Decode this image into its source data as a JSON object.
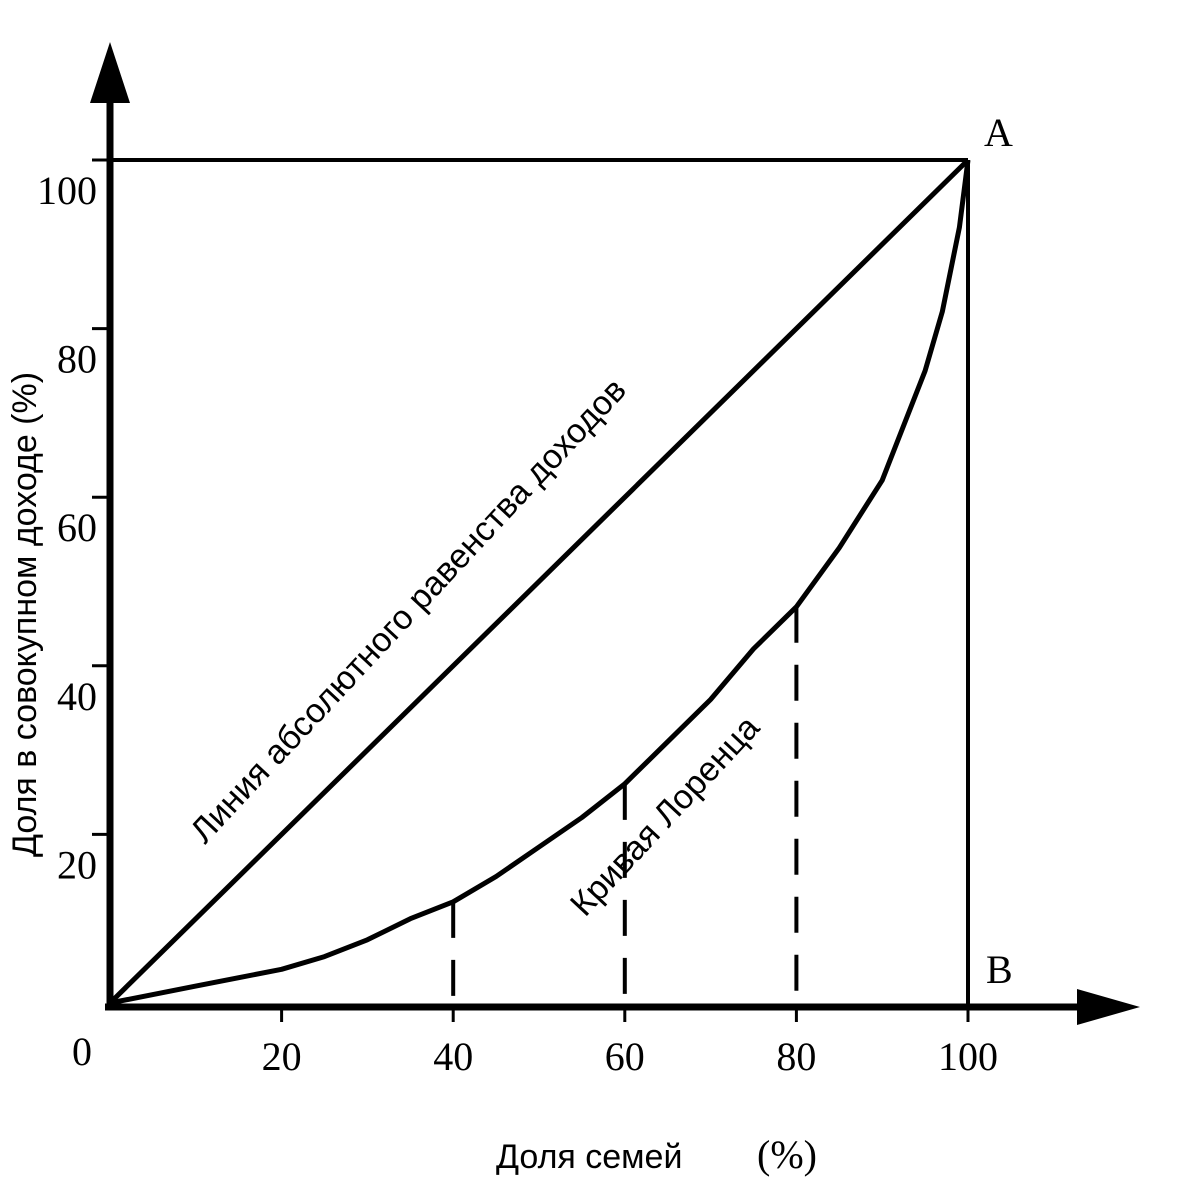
{
  "chart_data": {
    "type": "line",
    "xlabel": "Доля семей",
    "xlabel_unit": "(%)",
    "ylabel": "Доля в совокупном доходе (%)",
    "xlim": [
      0,
      100
    ],
    "ylim": [
      0,
      100
    ],
    "origin_label": "0",
    "x_ticks": [
      20,
      40,
      60,
      80,
      100
    ],
    "x_tick_labels": [
      "20",
      "40",
      "60",
      "80",
      "100"
    ],
    "y_ticks": [
      20,
      40,
      60,
      80,
      100
    ],
    "y_tick_labels": [
      "20",
      "40",
      "60",
      "80",
      "100"
    ],
    "series": [
      {
        "name": "Линия абсолютного равенства доходов",
        "x": [
          0,
          100
        ],
        "y": [
          0,
          100
        ]
      },
      {
        "name": "Кривая Лоренца",
        "x": [
          0,
          5,
          10,
          15,
          20,
          25,
          30,
          35,
          40,
          45,
          50,
          55,
          60,
          65,
          70,
          75,
          80,
          85,
          90,
          95,
          97,
          99,
          100
        ],
        "y": [
          0,
          1,
          2,
          3,
          4,
          5.5,
          7.5,
          10,
          12,
          15,
          18.5,
          22,
          26,
          31,
          36,
          42,
          47,
          54,
          62,
          75,
          82,
          92,
          100
        ]
      }
    ],
    "dashed_guides_x": [
      40,
      60,
      80
    ],
    "points": [
      {
        "label": "A",
        "x": 100,
        "y": 100
      },
      {
        "label": "B",
        "x": 100,
        "y": 0
      }
    ]
  }
}
